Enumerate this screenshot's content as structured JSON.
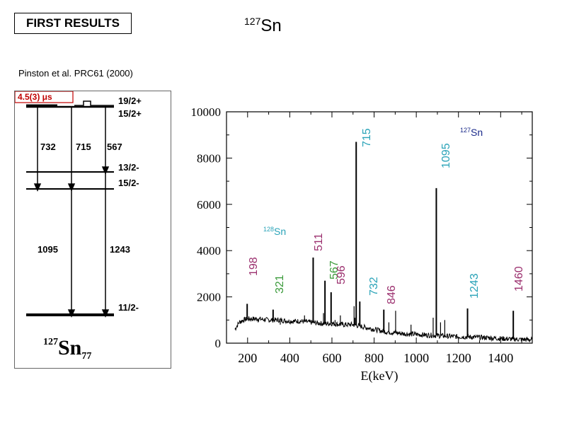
{
  "slide": {
    "title": "FIRST RESULTS",
    "isotope_main": {
      "mass": "127",
      "element": "Sn"
    },
    "reference": "Pinston et al.  PRC61 (2000)"
  },
  "level_scheme": {
    "isomer_halflife": "4.5(3) μs",
    "levels": [
      "19/2+",
      "15/2+",
      "13/2-",
      "15/2-",
      "11/2-"
    ],
    "transitions": [
      "732",
      "715",
      "567",
      "1095",
      "1243"
    ],
    "nucleus": {
      "mass": "127",
      "symbol": "Sn",
      "neutrons": "77"
    }
  },
  "chart_data": {
    "type": "line",
    "title": "",
    "xlabel": "E(keV)",
    "ylabel": "",
    "xlim": [
      100,
      1550
    ],
    "ylim": [
      0,
      10000
    ],
    "x_ticks": [
      200,
      400,
      600,
      800,
      1000,
      1200,
      1400
    ],
    "x_tick_labels": [
      "200",
      "400",
      "600",
      "800",
      "1000",
      "1200",
      "1400"
    ],
    "y_ticks": [
      0,
      2000,
      4000,
      6000,
      8000,
      10000
    ],
    "y_tick_labels": [
      "0",
      "2000",
      "4000",
      "6000",
      "8000",
      "10000"
    ],
    "background": [
      [
        140,
        600
      ],
      [
        160,
        900
      ],
      [
        180,
        1000
      ],
      [
        200,
        1050
      ],
      [
        250,
        1050
      ],
      [
        300,
        1000
      ],
      [
        350,
        1000
      ],
      [
        400,
        950
      ],
      [
        450,
        950
      ],
      [
        500,
        900
      ],
      [
        550,
        850
      ],
      [
        600,
        850
      ],
      [
        650,
        800
      ],
      [
        700,
        800
      ],
      [
        750,
        700
      ],
      [
        800,
        600
      ],
      [
        850,
        500
      ],
      [
        900,
        450
      ],
      [
        950,
        400
      ],
      [
        1000,
        380
      ],
      [
        1050,
        350
      ],
      [
        1100,
        330
      ],
      [
        1150,
        300
      ],
      [
        1200,
        280
      ],
      [
        1250,
        270
      ],
      [
        1300,
        250
      ],
      [
        1350,
        230
      ],
      [
        1400,
        200
      ],
      [
        1450,
        180
      ],
      [
        1500,
        160
      ],
      [
        1550,
        150
      ]
    ],
    "peaks": [
      {
        "energy": 198,
        "height": 1700,
        "label": "198",
        "color": "#9b2f6e"
      },
      {
        "energy": 321,
        "height": 1450,
        "label": "321",
        "color": "#3a9a3a"
      },
      {
        "energy": 511,
        "height": 3700,
        "label": "511",
        "color": "#9b2f6e"
      },
      {
        "energy": 567,
        "height": 2700,
        "label": "567",
        "color": "#3a9a3a"
      },
      {
        "energy": 596,
        "height": 2200,
        "label": "596",
        "color": "#9b2f6e"
      },
      {
        "energy": 715,
        "height": 8700,
        "label": "715",
        "color": "#2aa3b8"
      },
      {
        "energy": 732,
        "height": 1800,
        "label": "732",
        "color": "#2aa3b8"
      },
      {
        "energy": 846,
        "height": 1450,
        "label": "846",
        "color": "#9b2f6e"
      },
      {
        "energy": 1095,
        "height": 6700,
        "label": "1095",
        "color": "#2aa3b8"
      },
      {
        "energy": 1243,
        "height": 1500,
        "label": "1243",
        "color": "#2aa3b8"
      },
      {
        "energy": 1460,
        "height": 1400,
        "label": "1460",
        "color": "#9b2f6e"
      }
    ],
    "annotations": [
      {
        "mass": "127",
        "symbol": "Sn",
        "color": "#1a2a8a"
      },
      {
        "mass": "128",
        "symbol": "Sn",
        "color": "#2aa3b8"
      }
    ]
  }
}
